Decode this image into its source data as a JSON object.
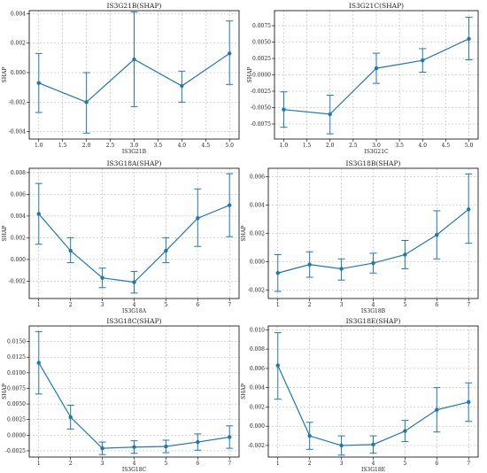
{
  "colors": {
    "series": "#1f77b4",
    "grid": "#b0b0b0",
    "axis": "#000000"
  },
  "chart_data": [
    {
      "type": "line",
      "title": "IS3G21B(SHAP)",
      "xlabel": "IS3G21B",
      "ylabel": "SHAP",
      "x": [
        1,
        2,
        3,
        4,
        5
      ],
      "y": [
        -0.0007,
        -0.002,
        0.0009,
        -0.0009,
        0.0013
      ],
      "err_low": [
        -0.0027,
        -0.0041,
        -0.0023,
        -0.002,
        -0.0008
      ],
      "err_high": [
        0.0013,
        0.0,
        0.0041,
        0.0001,
        0.0035
      ],
      "xlim": [
        0.8,
        5.2
      ],
      "ylim": [
        -0.0045,
        0.0042
      ],
      "xticks": [
        1.0,
        1.5,
        2.0,
        2.5,
        3.0,
        3.5,
        4.0,
        4.5,
        5.0
      ],
      "xtick_labels": [
        "1.0",
        "1.5",
        "2.0",
        "2.5",
        "3.0",
        "3.5",
        "4.0",
        "4.5",
        "5.0"
      ],
      "yticks": [
        -0.004,
        -0.002,
        0.0,
        0.002,
        0.004
      ],
      "ytick_labels": [
        "-0.004",
        "-0.002",
        "0.000",
        "0.002",
        "0.004"
      ],
      "grid": true
    },
    {
      "type": "line",
      "title": "IS3G21C(SHAP)",
      "xlabel": "IS3G21C",
      "ylabel": "SHAP",
      "x": [
        1,
        2,
        3,
        4,
        5
      ],
      "y": [
        -0.0053,
        -0.006,
        0.001,
        0.0022,
        0.0055
      ],
      "err_low": [
        -0.008,
        -0.009,
        -0.0013,
        0.0004,
        0.0023
      ],
      "err_high": [
        -0.0026,
        -0.0031,
        0.0033,
        0.004,
        0.0088
      ],
      "xlim": [
        0.8,
        5.2
      ],
      "ylim": [
        -0.0098,
        0.0098
      ],
      "xticks": [
        1.0,
        1.5,
        2.0,
        2.5,
        3.0,
        3.5,
        4.0,
        4.5,
        5.0
      ],
      "xtick_labels": [
        "1.0",
        "1.5",
        "2.0",
        "2.5",
        "3.0",
        "3.5",
        "4.0",
        "4.5",
        "5.0"
      ],
      "yticks": [
        -0.0075,
        -0.005,
        -0.0025,
        0.0,
        0.0025,
        0.005,
        0.0075
      ],
      "ytick_labels": [
        "-0.0075",
        "-0.0050",
        "-0.0025",
        "0.0000",
        "0.0025",
        "0.0050",
        "0.0075"
      ],
      "grid": true
    },
    {
      "type": "line",
      "title": "IS3G18A(SHAP)",
      "xlabel": "IS3G18A",
      "ylabel": "SHAP",
      "x": [
        1,
        2,
        3,
        4,
        5,
        6,
        7
      ],
      "y": [
        0.0042,
        0.0008,
        -0.0017,
        -0.0021,
        0.0008,
        0.0038,
        0.005
      ],
      "err_low": [
        0.0014,
        -0.0003,
        -0.0026,
        -0.0031,
        -0.0003,
        0.0012,
        0.0021
      ],
      "err_high": [
        0.007,
        0.002,
        -0.0008,
        -0.0011,
        0.002,
        0.0065,
        0.0079
      ],
      "xlim": [
        0.7,
        7.3
      ],
      "ylim": [
        -0.0036,
        0.0084
      ],
      "xticks": [
        1,
        2,
        3,
        4,
        5,
        6,
        7
      ],
      "xtick_labels": [
        "1",
        "2",
        "3",
        "4",
        "5",
        "6",
        "7"
      ],
      "yticks": [
        -0.002,
        0.0,
        0.002,
        0.004,
        0.006,
        0.008
      ],
      "ytick_labels": [
        "-0.002",
        "0.000",
        "0.002",
        "0.004",
        "0.006",
        "0.008"
      ],
      "grid": true
    },
    {
      "type": "line",
      "title": "IS3G18B(SHAP)",
      "xlabel": "IS3G18B",
      "ylabel": "SHAP",
      "x": [
        1,
        2,
        3,
        4,
        5,
        6,
        7
      ],
      "y": [
        -0.0008,
        -0.0002,
        -0.0005,
        -0.0001,
        0.0005,
        0.0019,
        0.0037
      ],
      "err_low": [
        -0.0021,
        -0.0011,
        -0.0013,
        -0.0008,
        -0.0005,
        0.0002,
        0.0013
      ],
      "err_high": [
        0.0005,
        0.0007,
        0.0002,
        0.0006,
        0.0015,
        0.0036,
        0.0062
      ],
      "xlim": [
        0.7,
        7.3
      ],
      "ylim": [
        -0.0026,
        0.0066
      ],
      "xticks": [
        1,
        2,
        3,
        4,
        5,
        6,
        7
      ],
      "xtick_labels": [
        "1",
        "2",
        "3",
        "4",
        "5",
        "6",
        "7"
      ],
      "yticks": [
        -0.002,
        0.0,
        0.002,
        0.004,
        0.006
      ],
      "ytick_labels": [
        "-0.002",
        "0.000",
        "0.002",
        "0.004",
        "0.006"
      ],
      "grid": true
    },
    {
      "type": "line",
      "title": "IS3G18C(SHAP)",
      "xlabel": "IS3G18C",
      "ylabel": "SHAP",
      "x": [
        1,
        2,
        3,
        4,
        5,
        6,
        7
      ],
      "y": [
        0.0116,
        0.0029,
        -0.0021,
        -0.0019,
        -0.0018,
        -0.0011,
        -0.0003
      ],
      "err_low": [
        0.0066,
        0.001,
        -0.0031,
        -0.0029,
        -0.0028,
        -0.0024,
        -0.0021
      ],
      "err_high": [
        0.0166,
        0.0048,
        -0.0011,
        -0.0009,
        -0.0008,
        0.0002,
        0.0015
      ],
      "xlim": [
        0.7,
        7.3
      ],
      "ylim": [
        -0.0035,
        0.0175
      ],
      "xticks": [
        1,
        2,
        3,
        4,
        5,
        6,
        7
      ],
      "xtick_labels": [
        "1",
        "2",
        "3",
        "4",
        "5",
        "6",
        "7"
      ],
      "yticks": [
        -0.0025,
        0.0,
        0.0025,
        0.005,
        0.0075,
        0.01,
        0.0125,
        0.015
      ],
      "ytick_labels": [
        "-0.0025",
        "0.0000",
        "0.0025",
        "0.0050",
        "0.0075",
        "0.0100",
        "0.0125",
        "0.0150"
      ],
      "grid": true
    },
    {
      "type": "line",
      "title": "IS3G18E(SHAP)",
      "xlabel": "IS3G18E",
      "ylabel": "SHAP",
      "x": [
        1,
        2,
        3,
        4,
        5,
        6,
        7
      ],
      "y": [
        0.0063,
        -0.001,
        -0.002,
        -0.0019,
        -0.0005,
        0.0017,
        0.0025
      ],
      "err_low": [
        0.0028,
        -0.0024,
        -0.003,
        -0.0028,
        -0.0016,
        -0.0006,
        0.0005
      ],
      "err_high": [
        0.0097,
        0.0004,
        -0.001,
        -0.001,
        0.0006,
        0.004,
        0.0045
      ],
      "xlim": [
        0.7,
        7.3
      ],
      "ylim": [
        -0.0032,
        0.0104
      ],
      "xticks": [
        1,
        2,
        3,
        4,
        5,
        6,
        7
      ],
      "xtick_labels": [
        "1",
        "2",
        "3",
        "4",
        "5",
        "6",
        "7"
      ],
      "yticks": [
        -0.002,
        0.0,
        0.002,
        0.004,
        0.006,
        0.008,
        0.01
      ],
      "ytick_labels": [
        "-0.002",
        "0.000",
        "0.002",
        "0.004",
        "0.006",
        "0.008",
        "0.010"
      ],
      "grid": true
    }
  ]
}
